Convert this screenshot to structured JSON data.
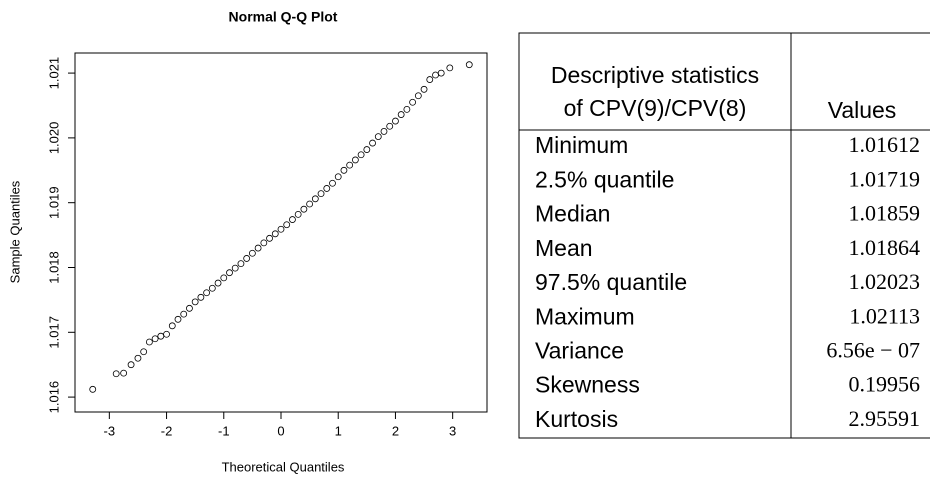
{
  "chart_data": {
    "type": "scatter",
    "title": "Normal Q-Q Plot",
    "x_label": "Theoretical Quantiles",
    "y_label": "Sample Quantiles",
    "x": [
      -3.29,
      -2.88,
      -2.75,
      -2.62,
      -2.5,
      -2.4,
      -2.3,
      -2.2,
      -2.1,
      -2.0,
      -1.9,
      -1.8,
      -1.7,
      -1.6,
      -1.5,
      -1.4,
      -1.3,
      -1.2,
      -1.1,
      -1.0,
      -0.9,
      -0.8,
      -0.7,
      -0.6,
      -0.5,
      -0.4,
      -0.3,
      -0.2,
      -0.1,
      0,
      0.1,
      0.2,
      0.3,
      0.4,
      0.5,
      0.6,
      0.7,
      0.8,
      0.9,
      1.0,
      1.1,
      1.2,
      1.3,
      1.4,
      1.5,
      1.6,
      1.7,
      1.8,
      1.9,
      2.0,
      2.1,
      2.2,
      2.3,
      2.4,
      2.5,
      2.6,
      2.7,
      2.8,
      2.95,
      3.29
    ],
    "values": [
      1.01612,
      1.01636,
      1.01637,
      1.0165,
      1.0166,
      1.0167,
      1.01685,
      1.0169,
      1.01694,
      1.01697,
      1.0171,
      1.0172,
      1.01728,
      1.01737,
      1.01747,
      1.01754,
      1.01761,
      1.01768,
      1.01776,
      1.01784,
      1.01792,
      1.01799,
      1.01806,
      1.01814,
      1.01822,
      1.0183,
      1.01838,
      1.01845,
      1.01852,
      1.01859,
      1.01866,
      1.01874,
      1.01882,
      1.0189,
      1.01898,
      1.01906,
      1.01914,
      1.01922,
      1.0193,
      1.0194,
      1.0195,
      1.01958,
      1.01966,
      1.01974,
      1.01982,
      1.01992,
      1.02002,
      1.0201,
      1.02018,
      1.02026,
      1.02036,
      1.02044,
      1.02055,
      1.02065,
      1.02075,
      1.0209,
      1.02097,
      1.021,
      1.02108,
      1.02113
    ],
    "color": "#000000",
    "xlim": [
      -3.6,
      3.6
    ],
    "xticks": [
      -3,
      -2,
      -1,
      0,
      1,
      2,
      3
    ],
    "ylim": [
      1.01577,
      1.02131
    ],
    "yticks": [
      1.016,
      1.017,
      1.018,
      1.019,
      {
        "value": 1.02,
        "label": "1.020"
      },
      1.021
    ]
  },
  "table": {
    "header": [
      "Descriptive statistics",
      "of CPV(9)/CPV(8)",
      "Values"
    ],
    "rows": [
      [
        "Minimum",
        "1.01612"
      ],
      [
        "2.5% quantile",
        "1.01719"
      ],
      [
        "Median",
        "1.01859"
      ],
      [
        "Mean",
        "1.01864"
      ],
      [
        "97.5% quantile",
        "1.02023"
      ],
      [
        "Maximum",
        "1.02113"
      ],
      [
        "Variance",
        "6.56e − 07"
      ],
      [
        "Skewness",
        "0.19956"
      ],
      [
        "Kurtosis",
        "2.95591"
      ]
    ]
  }
}
